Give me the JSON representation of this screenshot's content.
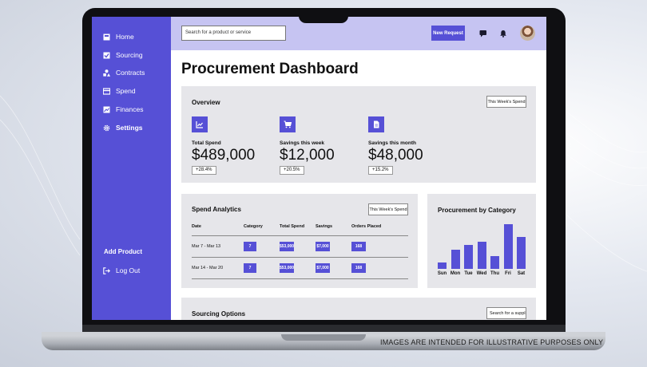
{
  "sidebar": {
    "items": [
      {
        "label": "Home",
        "icon": "inbox-icon"
      },
      {
        "label": "Sourcing",
        "icon": "checkbox-icon"
      },
      {
        "label": "Contracts",
        "icon": "shapes-icon"
      },
      {
        "label": "Spend",
        "icon": "card-icon"
      },
      {
        "label": "Finances",
        "icon": "chart-icon"
      },
      {
        "label": "Settings",
        "icon": "gear-icon"
      }
    ],
    "add_product": "Add Product",
    "logout": "Log Out"
  },
  "header": {
    "search_placeholder": "Search for a product or service",
    "new_request": "New Request"
  },
  "page_title": "Procurement Dashboard",
  "overview": {
    "title": "Overview",
    "filter": "This Week's Spend",
    "metrics": [
      {
        "label": "Total Spend",
        "value": "$489,000",
        "delta": "+28.4%",
        "icon": "line-chart-icon"
      },
      {
        "label": "Savings this week",
        "value": "$12,000",
        "delta": "+20.5%",
        "icon": "cart-icon"
      },
      {
        "label": "Savings this month",
        "value": "$48,000",
        "delta": "+15.2%",
        "icon": "document-icon"
      }
    ]
  },
  "spend_analytics": {
    "title": "Spend Analytics",
    "filter": "This Week's Spend",
    "columns": [
      "Date",
      "Category",
      "Total Spend",
      "Savings",
      "Orders Placed"
    ],
    "rows": [
      {
        "date": "Mar 7 - Mar 13",
        "category": "7",
        "total": "$53,000",
        "savings": "$7,000",
        "orders": "168"
      },
      {
        "date": "Mar 14 - Mar 20",
        "category": "7",
        "total": "$53,000",
        "savings": "$7,000",
        "orders": "168"
      }
    ]
  },
  "category_chart": {
    "title": "Procurement by Category"
  },
  "chart_data": {
    "type": "bar",
    "categories": [
      "Sun",
      "Mon",
      "Tue",
      "Wed",
      "Thu",
      "Fri",
      "Sat"
    ],
    "values": [
      1.2,
      3.5,
      4.4,
      5.0,
      2.3,
      8.2,
      5.8
    ],
    "title": "Procurement by Category",
    "xlabel": "",
    "ylabel": "",
    "ylim": [
      0,
      8.5
    ],
    "grid": false,
    "color": "#5650d6"
  },
  "sourcing": {
    "title": "Sourcing Options",
    "search_placeholder": "Search for a supplier"
  },
  "disclaimer": "IMAGES ARE INTENDED FOR ILLUSTRATIVE PURPOSES ONLY",
  "colors": {
    "accent": "#5650d6",
    "header": "#c6c4f2",
    "card": "#e6e6ea"
  }
}
